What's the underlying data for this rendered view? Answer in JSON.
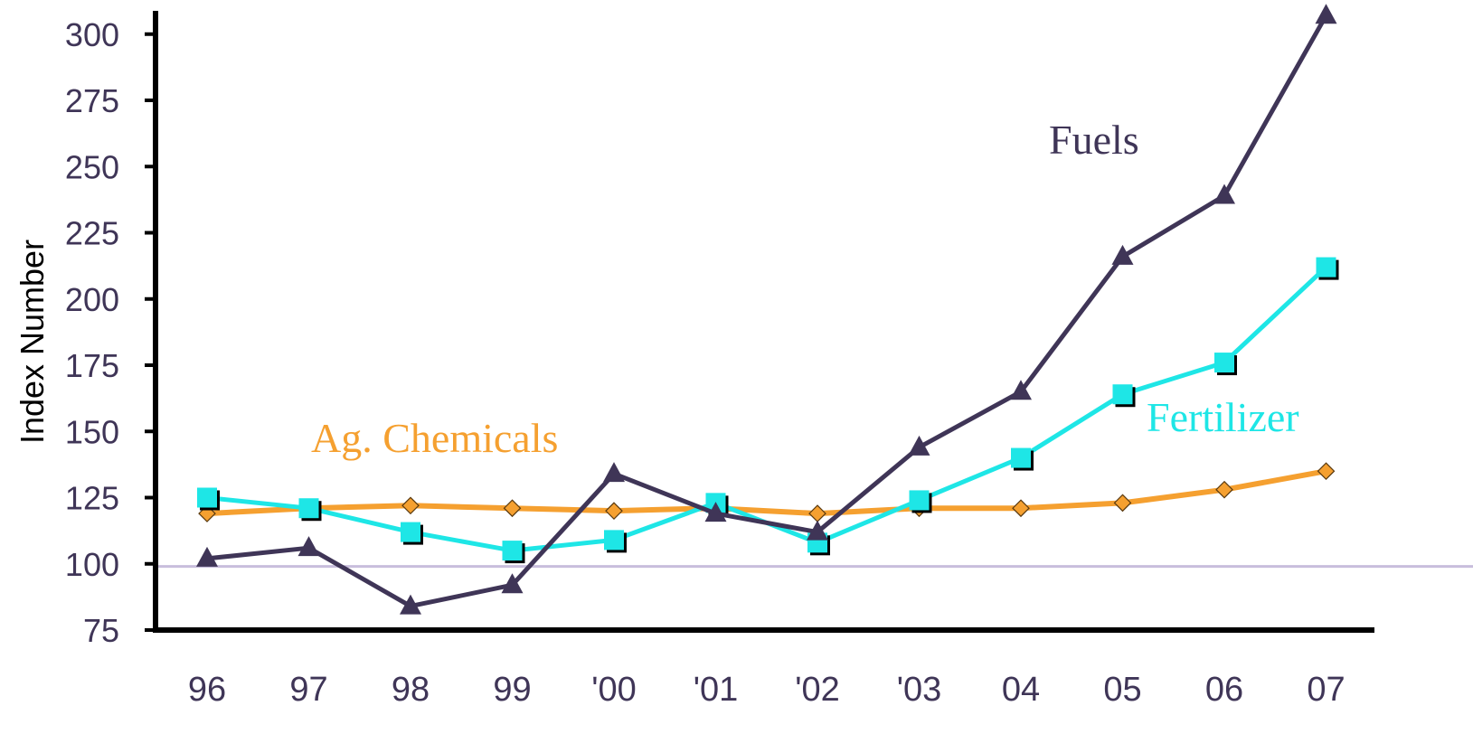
{
  "chart_data": {
    "type": "line",
    "title": "",
    "xlabel": "",
    "ylabel": "Index Number",
    "categories": [
      "96",
      "97",
      "98",
      "99",
      "'00",
      "'01",
      "'02",
      "'03",
      "04",
      "05",
      "06",
      "07"
    ],
    "yticks": [
      75,
      100,
      125,
      150,
      175,
      200,
      225,
      250,
      275,
      300
    ],
    "ylim": [
      75,
      305
    ],
    "reference_line": 99,
    "grid": false,
    "legend": "inline labels",
    "series": [
      {
        "name": "Ag. Chemicals",
        "color": "#f5a030",
        "marker": "diamond",
        "values": [
          119,
          121,
          122,
          121,
          120,
          121,
          119,
          121,
          121,
          123,
          128,
          135
        ]
      },
      {
        "name": "Fertilizer",
        "color": "#1ee6e6",
        "marker": "square",
        "values": [
          125,
          121,
          112,
          105,
          109,
          123,
          108,
          124,
          140,
          164,
          176,
          212
        ]
      },
      {
        "name": "Fuels",
        "color": "#3f3557",
        "marker": "triangle",
        "values": [
          102,
          106,
          84,
          92,
          134,
          119,
          112,
          144,
          165,
          216,
          239,
          307
        ]
      }
    ]
  }
}
